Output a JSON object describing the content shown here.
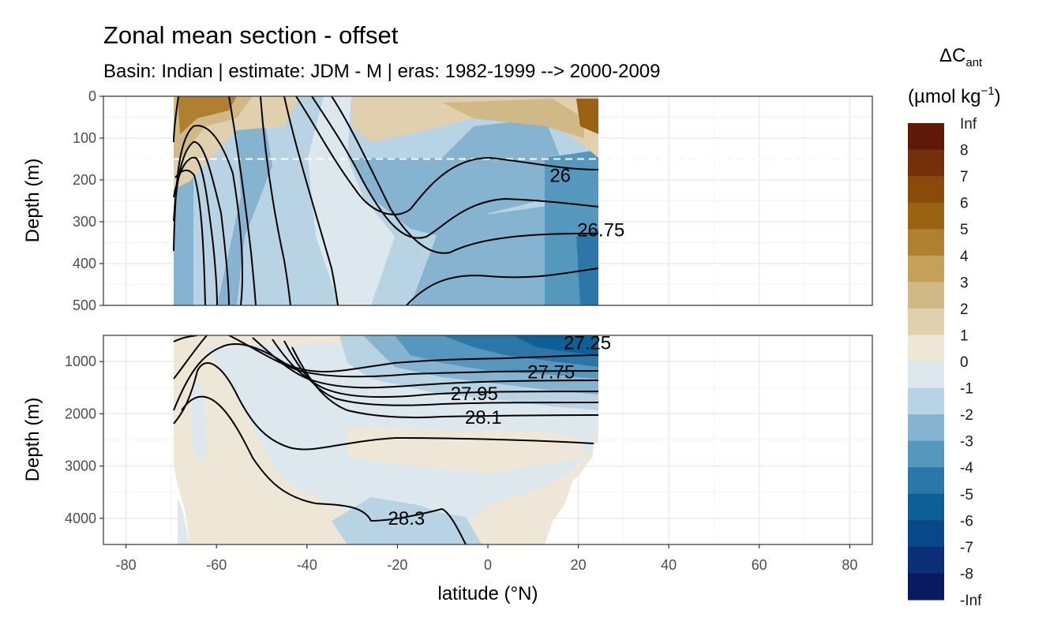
{
  "chart_data": {
    "type": "filled-contour-section",
    "title": "Zonal mean section - offset",
    "subtitle": "Basin: Indian | estimate: JDM - M | eras: 1982-1999 --> 2000-2009",
    "xlabel": "latitude (°N)",
    "ylabel_upper": "Depth (m)",
    "ylabel_lower": "Depth (m)",
    "xlim": [
      -85,
      85
    ],
    "x_ticks": [
      -80,
      -60,
      -40,
      -20,
      0,
      20,
      40,
      60,
      80
    ],
    "data_lat_range": [
      -69.5,
      24.5
    ],
    "upper_panel": {
      "ylim": [
        500,
        0
      ],
      "y_ticks": [
        0,
        100,
        200,
        300,
        400,
        500
      ],
      "dashed_line_depth": 150
    },
    "lower_panel": {
      "ylim": [
        4500,
        500
      ],
      "y_ticks": [
        1000,
        2000,
        3000,
        4000
      ]
    },
    "legend": {
      "title_main": "ΔC",
      "title_sub": "ant",
      "unit_main": "(µmol kg",
      "unit_sup": "−1",
      "unit_end": ")",
      "placement": "right",
      "breaks": [
        "Inf",
        "8",
        "7",
        "6",
        "5",
        "4",
        "3",
        "2",
        "1",
        "0",
        "-1",
        "-2",
        "-3",
        "-4",
        "-5",
        "-6",
        "-7",
        "-8",
        "-Inf"
      ],
      "colors": [
        "#5e1a06",
        "#73300b",
        "#8a4a0b",
        "#9a6213",
        "#b07f30",
        "#c4a058",
        "#d1b987",
        "#e0d0ae",
        "#eee6d7",
        "#dde8ee",
        "#b8d3e3",
        "#86b3cf",
        "#5597bd",
        "#2c77a8",
        "#0d5f98",
        "#09478b",
        "#0a2f77",
        "#0a1a60"
      ]
    },
    "isopycnals": [
      {
        "label": "26",
        "label_lat": 16,
        "label_depth": 190
      },
      {
        "label": "26.75",
        "label_lat": 25,
        "label_depth": 320
      },
      {
        "label": "27.25",
        "label_lat": 22,
        "label_depth": 640
      },
      {
        "label": "27.75",
        "label_lat": 14,
        "label_depth": 1200
      },
      {
        "label": "27.95",
        "label_lat": -3,
        "label_depth": 1620
      },
      {
        "label": "28.1",
        "label_lat": -1,
        "label_depth": 2070
      },
      {
        "label": "28.3",
        "label_lat": -18,
        "label_depth": 4000
      }
    ]
  }
}
